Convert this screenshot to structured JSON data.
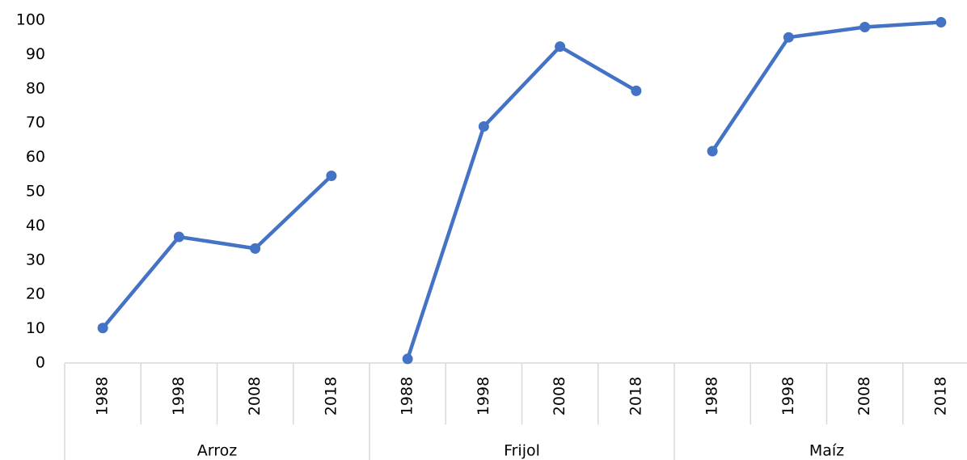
{
  "chart_data": {
    "type": "line",
    "color": "#4472c4",
    "groups": [
      {
        "label": "Arroz",
        "categories": [
          "1988",
          "1998",
          "2008",
          "2018"
        ],
        "values": [
          10.2,
          36.8,
          33.4,
          54.6
        ]
      },
      {
        "label": "Frijol",
        "categories": [
          "1988",
          "1998",
          "2008",
          "2018"
        ],
        "values": [
          1.2,
          69,
          92.3,
          79.4
        ]
      },
      {
        "label": "Maíz",
        "categories": [
          "1988",
          "1998",
          "2008",
          "2018"
        ],
        "values": [
          61.8,
          95,
          98,
          99.4
        ]
      }
    ],
    "ylim": [
      0,
      100
    ],
    "yticks": [
      0,
      10,
      20,
      30,
      40,
      50,
      60,
      70,
      80,
      90,
      100
    ],
    "grid": false
  }
}
